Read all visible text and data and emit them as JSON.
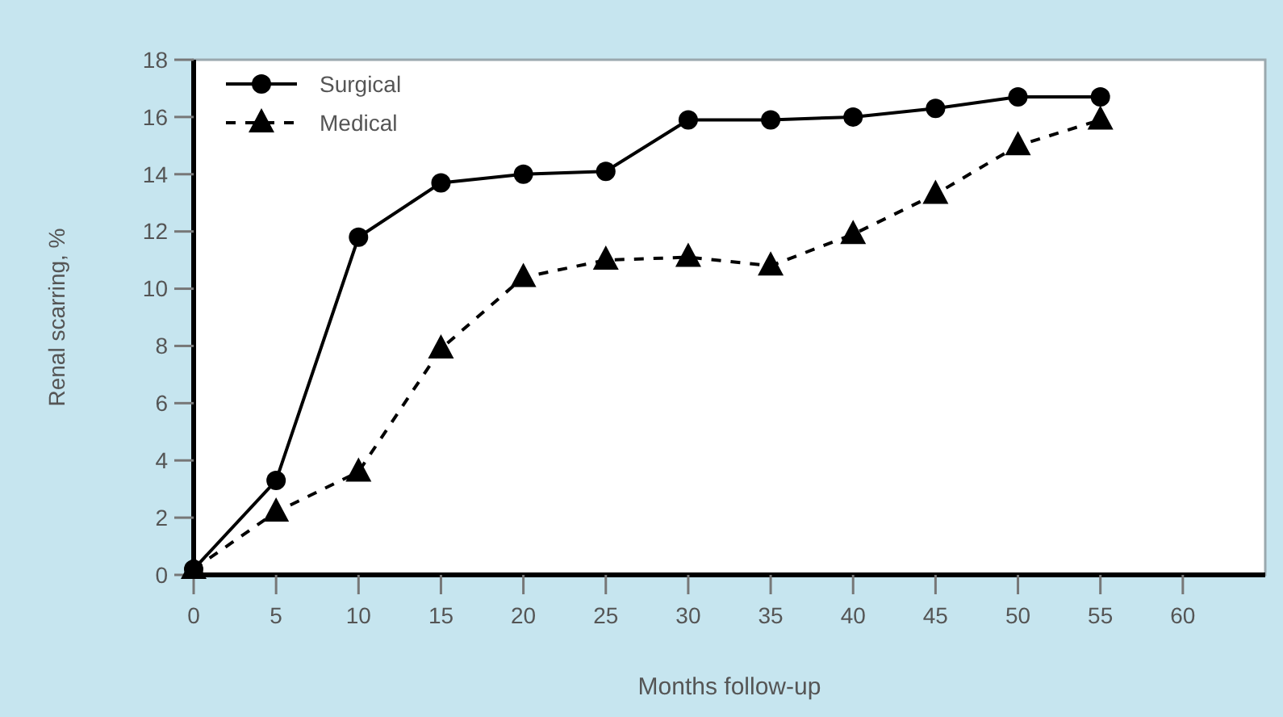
{
  "chart_data": {
    "type": "line",
    "xlabel": "Months follow-up",
    "ylabel": "Renal scarring, %",
    "x": [
      0,
      5,
      10,
      15,
      20,
      25,
      30,
      35,
      40,
      45,
      50,
      55
    ],
    "series": [
      {
        "name": "Surgical",
        "color": "#000000",
        "marker": "circle",
        "line_style": "solid",
        "values": [
          0.2,
          3.3,
          11.8,
          13.7,
          14.0,
          14.1,
          15.9,
          15.9,
          16.0,
          16.3,
          16.7,
          16.7
        ]
      },
      {
        "name": "Medical",
        "color": "#000000",
        "marker": "triangle",
        "line_style": "dashed",
        "values": [
          0.2,
          2.2,
          3.6,
          7.9,
          10.4,
          11.0,
          11.1,
          10.8,
          11.9,
          13.3,
          15.0,
          15.9
        ]
      }
    ],
    "xlim": [
      0,
      65
    ],
    "xticks": [
      0,
      5,
      10,
      15,
      20,
      25,
      30,
      35,
      40,
      45,
      50,
      55,
      60
    ],
    "ylim": [
      0,
      18
    ],
    "yticks": [
      0,
      2,
      4,
      6,
      8,
      10,
      12,
      14,
      16,
      18
    ],
    "grid": false,
    "legend": "top left"
  }
}
